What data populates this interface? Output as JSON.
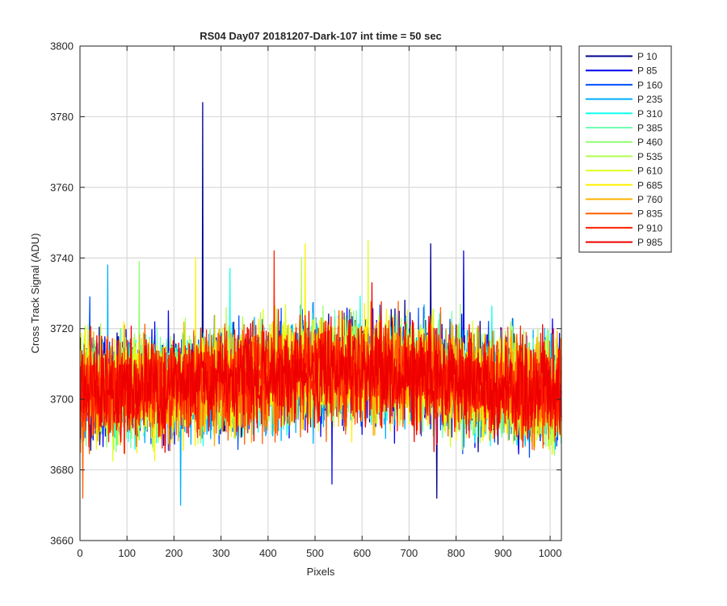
{
  "chart_data": {
    "type": "line",
    "title": "RS04 Day07 20181207-Dark-107 int time = 50 sec",
    "xlabel": "Pixels",
    "ylabel": "Cross Track Signal (ADU)",
    "xlim": [
      0,
      1024
    ],
    "ylim": [
      3660,
      3800
    ],
    "x_ticks": [
      0,
      100,
      200,
      300,
      400,
      500,
      600,
      700,
      800,
      900,
      1000
    ],
    "y_ticks": [
      3660,
      3680,
      3700,
      3720,
      3740,
      3760,
      3780,
      3800
    ],
    "grid": true,
    "legend_position": "outside-right",
    "n_points": 1024,
    "center_profile": [
      [
        0,
        3703
      ],
      [
        150,
        3703
      ],
      [
        300,
        3705
      ],
      [
        500,
        3708
      ],
      [
        700,
        3708
      ],
      [
        850,
        3704
      ],
      [
        1024,
        3702
      ]
    ],
    "series": [
      {
        "name": "P 10",
        "color": "#00008F",
        "mean": 3705,
        "noise": 7,
        "spikes": [
          [
            260,
            3784
          ],
          [
            745,
            3744
          ],
          [
            758,
            3672
          ]
        ]
      },
      {
        "name": "P 85",
        "color": "#0000EF",
        "mean": 3705,
        "noise": 7,
        "spikes": [
          [
            815,
            3742
          ],
          [
            535,
            3676
          ]
        ]
      },
      {
        "name": "P 160",
        "color": "#0050FF",
        "mean": 3705,
        "noise": 7,
        "spikes": [
          [
            20,
            3729
          ]
        ]
      },
      {
        "name": "P 235",
        "color": "#00AFFF",
        "mean": 3705,
        "noise": 7,
        "spikes": [
          [
            213,
            3670
          ],
          [
            58,
            3738
          ]
        ]
      },
      {
        "name": "P 310",
        "color": "#10FFEF",
        "mean": 3705,
        "noise": 7,
        "spikes": [
          [
            318,
            3737
          ]
        ]
      },
      {
        "name": "P 385",
        "color": "#70FFAF",
        "mean": 3705,
        "noise": 7,
        "spikes": []
      },
      {
        "name": "P 460",
        "color": "#8FFF70",
        "mean": 3705,
        "noise": 7,
        "spikes": [
          [
            125,
            3739
          ]
        ]
      },
      {
        "name": "P 535",
        "color": "#B0FF50",
        "mean": 3705,
        "noise": 7,
        "spikes": [
          [
            470,
            3740
          ]
        ]
      },
      {
        "name": "P 610",
        "color": "#DFFF20",
        "mean": 3705,
        "noise": 7,
        "spikes": [
          [
            612,
            3745
          ]
        ]
      },
      {
        "name": "P 685",
        "color": "#FFF000",
        "mean": 3705,
        "noise": 7,
        "spikes": [
          [
            478,
            3744
          ],
          [
            245,
            3740
          ]
        ]
      },
      {
        "name": "P 760",
        "color": "#FFB000",
        "mean": 3705,
        "noise": 7,
        "spikes": []
      },
      {
        "name": "P 835",
        "color": "#FF6000",
        "mean": 3705,
        "noise": 7,
        "spikes": [
          [
            5,
            3672
          ]
        ]
      },
      {
        "name": "P 910",
        "color": "#FF2000",
        "mean": 3705,
        "noise": 7,
        "spikes": [
          [
            412,
            3742
          ]
        ]
      },
      {
        "name": "P 985",
        "color": "#EF0000",
        "mean": 3705,
        "noise": 7,
        "spikes": [
          [
            620,
            3733
          ]
        ]
      }
    ]
  }
}
